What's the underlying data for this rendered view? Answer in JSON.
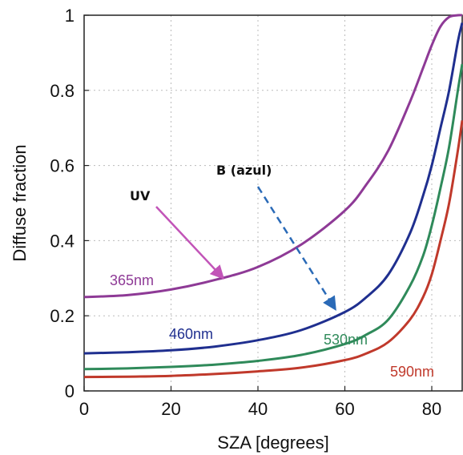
{
  "chart_data": {
    "type": "line",
    "xlabel": "SZA [degrees]",
    "ylabel": "Diffuse fraction",
    "xlim": [
      0,
      87
    ],
    "ylim": [
      0,
      1
    ],
    "xticks": [
      0,
      20,
      40,
      60,
      80
    ],
    "yticks": [
      0,
      0.2,
      0.4,
      0.6,
      0.8,
      1
    ],
    "grid": "dotted",
    "colors": {
      "uv": "#8e3a96",
      "blue": "#1f2f8f",
      "green": "#2f8a5a",
      "red": "#c0392b",
      "uv_arrow": "#c254b8",
      "b_arrow": "#2a6ab7"
    },
    "series": [
      {
        "name": "365nm",
        "color": "#8e3a96",
        "x": [
          0,
          10,
          20,
          30,
          40,
          50,
          60,
          65,
          70,
          75,
          78,
          80,
          82,
          84,
          86,
          87
        ],
        "y": [
          0.25,
          0.255,
          0.27,
          0.295,
          0.33,
          0.39,
          0.48,
          0.55,
          0.64,
          0.77,
          0.86,
          0.92,
          0.97,
          0.995,
          1.0,
          1.0
        ]
      },
      {
        "name": "460nm",
        "color": "#1f2f8f",
        "x": [
          0,
          10,
          20,
          30,
          40,
          50,
          60,
          65,
          70,
          75,
          78,
          80,
          82,
          84,
          86,
          87
        ],
        "y": [
          0.1,
          0.103,
          0.108,
          0.118,
          0.135,
          0.162,
          0.21,
          0.25,
          0.31,
          0.42,
          0.52,
          0.6,
          0.7,
          0.8,
          0.93,
          0.98
        ]
      },
      {
        "name": "530nm",
        "color": "#2f8a5a",
        "x": [
          0,
          10,
          20,
          30,
          40,
          50,
          60,
          65,
          70,
          75,
          78,
          80,
          82,
          84,
          86,
          87
        ],
        "y": [
          0.058,
          0.06,
          0.064,
          0.07,
          0.08,
          0.096,
          0.125,
          0.15,
          0.19,
          0.28,
          0.36,
          0.44,
          0.54,
          0.65,
          0.8,
          0.87
        ]
      },
      {
        "name": "590nm",
        "color": "#c0392b",
        "x": [
          0,
          10,
          20,
          30,
          40,
          50,
          60,
          65,
          70,
          75,
          78,
          80,
          82,
          84,
          86,
          87
        ],
        "y": [
          0.037,
          0.038,
          0.04,
          0.045,
          0.052,
          0.062,
          0.082,
          0.1,
          0.13,
          0.19,
          0.25,
          0.31,
          0.4,
          0.5,
          0.64,
          0.72
        ]
      }
    ],
    "annotations": [
      {
        "text": "UV",
        "target_x": 30,
        "target_y": 0.285
      },
      {
        "text": "B (azul)",
        "target_x": 68,
        "target_y": 0.235
      }
    ]
  }
}
